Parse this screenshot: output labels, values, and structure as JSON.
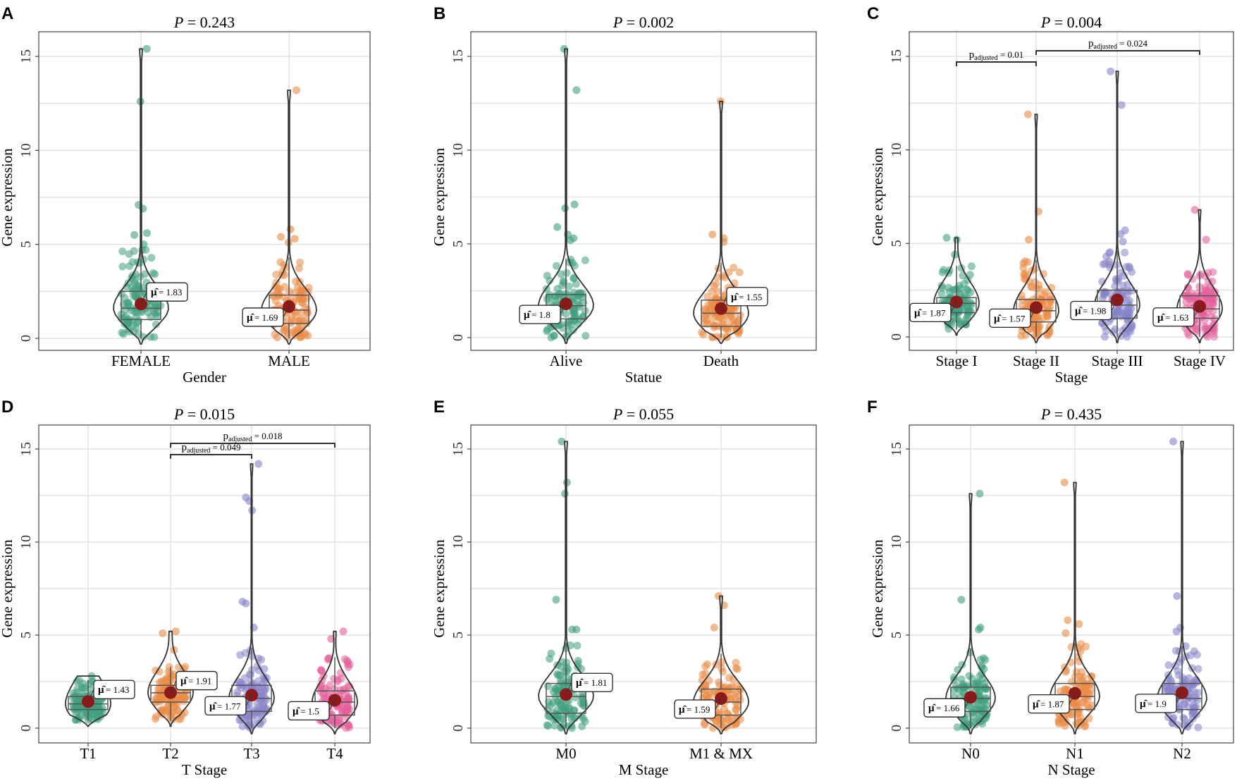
{
  "figure": {
    "colors": {
      "green": "#3f9f7c",
      "orange": "#e98a45",
      "purple": "#8583c6",
      "pink": "#e3609b",
      "mean_point": "#8b1a1a",
      "grid": "#e3e3e3",
      "frame": "#444444"
    },
    "panels": [
      {
        "letter": "A",
        "p_label": "P",
        "p_value": "= 0.243",
        "ylabel": "Gene expression",
        "xlabel": "Gender",
        "ylim": [
          0,
          15.5
        ],
        "yticks": [
          0,
          5,
          10,
          15
        ],
        "categories": [
          {
            "label": "FEMALE",
            "color": "green",
            "mean": 1.83,
            "mean_label": "= 1.83",
            "box": [
              1.0,
              1.6,
              2.5
            ],
            "whiskers": [
              0.0,
              4.8
            ],
            "max": 15.4,
            "label_side": "right",
            "outliers": [
              15.4,
              12.6,
              7.1,
              6.9,
              5.6,
              5.5,
              5.0
            ]
          },
          {
            "label": "MALE",
            "color": "orange",
            "mean": 1.69,
            "mean_label": "= 1.69",
            "box": [
              0.8,
              1.5,
              2.3
            ],
            "whiskers": [
              0.0,
              4.3
            ],
            "max": 13.2,
            "label_side": "left",
            "outliers": [
              13.2,
              5.8,
              5.4,
              5.3,
              5.1
            ]
          }
        ],
        "comparisons": []
      },
      {
        "letter": "B",
        "p_label": "P",
        "p_value": "= 0.002",
        "ylabel": "Gene expression",
        "xlabel": "Statue",
        "ylim": [
          0,
          15.5
        ],
        "yticks": [
          0,
          5,
          10,
          15
        ],
        "categories": [
          {
            "label": "Alive",
            "color": "green",
            "mean": 1.8,
            "mean_label": "= 1.8",
            "box": [
              1.0,
              1.7,
              2.3
            ],
            "whiskers": [
              0.0,
              4.2
            ],
            "max": 15.4,
            "label_side": "left",
            "outliers": [
              15.4,
              13.2,
              7.1,
              6.9,
              5.9,
              5.5,
              5.3,
              5.2
            ]
          },
          {
            "label": "Death",
            "color": "orange",
            "mean": 1.55,
            "mean_label": "= 1.55",
            "box": [
              0.6,
              1.3,
              2.0
            ],
            "whiskers": [
              0.0,
              4.0
            ],
            "max": 12.6,
            "label_side": "right",
            "outliers": [
              12.6,
              5.5,
              5.3,
              5.1
            ]
          }
        ],
        "comparisons": []
      },
      {
        "letter": "C",
        "p_label": "P",
        "p_value": "= 0.004",
        "ylabel": "Gene expression",
        "xlabel": "Stage",
        "ylim": [
          0,
          15.5
        ],
        "yticks": [
          0,
          5,
          10,
          15
        ],
        "categories": [
          {
            "label": "Stage I",
            "color": "green",
            "mean": 1.87,
            "mean_label": "= 1.87",
            "box": [
              1.3,
              1.8,
              2.1
            ],
            "whiskers": [
              0.4,
              3.8
            ],
            "max": 5.3,
            "label_side": "left",
            "outliers": [
              5.3,
              5.2,
              4.4
            ]
          },
          {
            "label": "Stage II",
            "color": "orange",
            "mean": 1.57,
            "mean_label": "= 1.57",
            "box": [
              0.8,
              1.4,
              2.0
            ],
            "whiskers": [
              0.0,
              4.1
            ],
            "max": 11.9,
            "label_side": "left",
            "outliers": [
              11.9,
              6.7,
              5.2
            ]
          },
          {
            "label": "Stage III",
            "color": "purple",
            "mean": 1.98,
            "mean_label": "= 1.98",
            "box": [
              1.0,
              1.7,
              2.5
            ],
            "whiskers": [
              0.0,
              4.6
            ],
            "max": 14.2,
            "label_side": "left",
            "outliers": [
              14.2,
              12.4,
              5.7,
              5.5,
              5.1
            ]
          },
          {
            "label": "Stage IV",
            "color": "pink",
            "mean": 1.63,
            "mean_label": "= 1.63",
            "box": [
              1.0,
              1.5,
              2.2
            ],
            "whiskers": [
              0.0,
              3.5
            ],
            "max": 6.8,
            "label_side": "left",
            "outliers": [
              6.8,
              5.2
            ]
          }
        ],
        "comparisons": [
          {
            "from": 0,
            "to": 1,
            "y": 14.7,
            "text": "= 0.01"
          },
          {
            "from": 1,
            "to": 3,
            "y": 15.3,
            "text": "= 0.024"
          }
        ]
      },
      {
        "letter": "D",
        "p_label": "P",
        "p_value": "= 0.015",
        "ylabel": "Gene expression",
        "xlabel": "T Stage",
        "ylim": [
          0,
          15.5
        ],
        "yticks": [
          0,
          5,
          10,
          15
        ],
        "categories": [
          {
            "label": "T1",
            "color": "green",
            "mean": 1.43,
            "mean_label": "= 1.43",
            "box": [
              1.0,
              1.3,
              1.7
            ],
            "whiskers": [
              0.4,
              2.6
            ],
            "max": 2.8,
            "label_side": "right",
            "outliers": [
              2.8
            ]
          },
          {
            "label": "T2",
            "color": "orange",
            "mean": 1.91,
            "mean_label": "= 1.91",
            "box": [
              1.4,
              1.9,
              2.3
            ],
            "whiskers": [
              0.4,
              3.3
            ],
            "max": 5.2,
            "label_side": "right",
            "outliers": [
              5.2,
              5.1,
              4.2
            ]
          },
          {
            "label": "T3",
            "color": "purple",
            "mean": 1.77,
            "mean_label": "= 1.77",
            "box": [
              0.9,
              1.6,
              2.3
            ],
            "whiskers": [
              0.0,
              4.3
            ],
            "max": 14.2,
            "label_side": "left",
            "outliers": [
              14.2,
              12.4,
              12.2,
              11.7,
              6.8,
              6.7,
              5.4
            ]
          },
          {
            "label": "T4",
            "color": "pink",
            "mean": 1.5,
            "mean_label": "= 1.5",
            "box": [
              0.7,
              1.4,
              2.0
            ],
            "whiskers": [
              0.0,
              3.8
            ],
            "max": 5.2,
            "label_side": "left",
            "outliers": [
              5.2,
              4.8
            ]
          }
        ],
        "comparisons": [
          {
            "from": 1,
            "to": 2,
            "y": 14.7,
            "text": "= 0.049"
          },
          {
            "from": 1,
            "to": 3,
            "y": 15.3,
            "text": "= 0.018"
          }
        ]
      },
      {
        "letter": "E",
        "p_label": "P",
        "p_value": "= 0.055",
        "ylabel": "Gene expression",
        "xlabel": "M Stage",
        "ylim": [
          0,
          15.5
        ],
        "yticks": [
          0,
          5,
          10,
          15
        ],
        "categories": [
          {
            "label": "M0",
            "color": "green",
            "mean": 1.81,
            "mean_label": "= 1.81",
            "box": [
              0.8,
              1.7,
              2.4
            ],
            "whiskers": [
              0.0,
              4.6
            ],
            "max": 15.4,
            "label_side": "right",
            "outliers": [
              15.4,
              13.2,
              12.6,
              6.9,
              5.3,
              5.3
            ]
          },
          {
            "label": "M1 & MX",
            "color": "orange",
            "mean": 1.59,
            "mean_label": "= 1.59",
            "box": [
              0.7,
              1.4,
              2.1
            ],
            "whiskers": [
              0.0,
              4.0
            ],
            "max": 7.1,
            "label_side": "left",
            "outliers": [
              7.1,
              6.6,
              5.4
            ]
          }
        ],
        "comparisons": []
      },
      {
        "letter": "F",
        "p_label": "P",
        "p_value": "= 0.435",
        "ylabel": "Gene expression",
        "xlabel": "N Stage",
        "ylim": [
          0,
          15.5
        ],
        "yticks": [
          0,
          5,
          10,
          15
        ],
        "categories": [
          {
            "label": "N0",
            "color": "green",
            "mean": 1.66,
            "mean_label": "= 1.66",
            "box": [
              0.9,
              1.6,
              2.2
            ],
            "whiskers": [
              0.0,
              4.3
            ],
            "max": 12.6,
            "label_side": "left",
            "outliers": [
              12.6,
              6.9,
              5.4,
              5.3
            ]
          },
          {
            "label": "N1",
            "color": "orange",
            "mean": 1.87,
            "mean_label": "= 1.87",
            "box": [
              1.0,
              1.7,
              2.4
            ],
            "whiskers": [
              0.0,
              4.6
            ],
            "max": 13.2,
            "label_side": "left",
            "outliers": [
              13.2,
              5.8,
              5.6,
              5.1
            ]
          },
          {
            "label": "N2",
            "color": "purple",
            "mean": 1.9,
            "mean_label": "= 1.9",
            "box": [
              1.0,
              1.6,
              2.4
            ],
            "whiskers": [
              0.0,
              4.4
            ],
            "max": 15.4,
            "label_side": "left",
            "outliers": [
              15.4,
              7.1,
              5.4,
              5.2,
              4.4
            ]
          }
        ],
        "comparisons": []
      }
    ]
  },
  "chart_data": [
    {
      "type": "violin",
      "panel": "A",
      "title": "P = 0.243",
      "xlabel": "Gender",
      "ylabel": "Gene expression",
      "ylim": [
        0,
        15.5
      ],
      "categories": [
        "FEMALE",
        "MALE"
      ],
      "means": [
        1.83,
        1.69
      ]
    },
    {
      "type": "violin",
      "panel": "B",
      "title": "P = 0.002",
      "xlabel": "Statue",
      "ylabel": "Gene expression",
      "ylim": [
        0,
        15.5
      ],
      "categories": [
        "Alive",
        "Death"
      ],
      "means": [
        1.8,
        1.55
      ]
    },
    {
      "type": "violin",
      "panel": "C",
      "title": "P = 0.004",
      "xlabel": "Stage",
      "ylabel": "Gene expression",
      "ylim": [
        0,
        15.5
      ],
      "categories": [
        "Stage I",
        "Stage II",
        "Stage III",
        "Stage IV"
      ],
      "means": [
        1.87,
        1.57,
        1.98,
        1.63
      ],
      "comparisons": [
        {
          "groups": [
            "Stage I",
            "Stage II"
          ],
          "p_adjusted": 0.01
        },
        {
          "groups": [
            "Stage II",
            "Stage IV"
          ],
          "p_adjusted": 0.024
        }
      ]
    },
    {
      "type": "violin",
      "panel": "D",
      "title": "P = 0.015",
      "xlabel": "T Stage",
      "ylabel": "Gene expression",
      "ylim": [
        0,
        15.5
      ],
      "categories": [
        "T1",
        "T2",
        "T3",
        "T4"
      ],
      "means": [
        1.43,
        1.91,
        1.77,
        1.5
      ],
      "comparisons": [
        {
          "groups": [
            "T2",
            "T3"
          ],
          "p_adjusted": 0.049
        },
        {
          "groups": [
            "T2",
            "T4"
          ],
          "p_adjusted": 0.018
        }
      ]
    },
    {
      "type": "violin",
      "panel": "E",
      "title": "P = 0.055",
      "xlabel": "M Stage",
      "ylabel": "Gene expression",
      "ylim": [
        0,
        15.5
      ],
      "categories": [
        "M0",
        "M1 & MX"
      ],
      "means": [
        1.81,
        1.59
      ]
    },
    {
      "type": "violin",
      "panel": "F",
      "title": "P = 0.435",
      "xlabel": "N Stage",
      "ylabel": "Gene expression",
      "ylim": [
        0,
        15.5
      ],
      "categories": [
        "N0",
        "N1",
        "N2"
      ],
      "means": [
        1.66,
        1.87,
        1.9
      ]
    }
  ]
}
